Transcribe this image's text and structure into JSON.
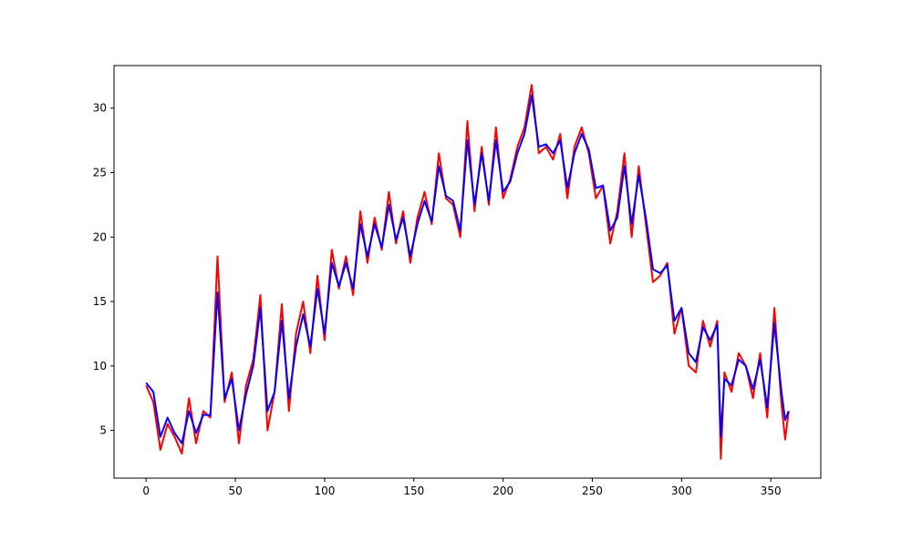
{
  "chart_data": {
    "type": "line",
    "title": "",
    "xlabel": "",
    "ylabel": "",
    "xlim": [
      -18,
      378
    ],
    "ylim": [
      1.3,
      33.3
    ],
    "xticks": [
      0,
      50,
      100,
      150,
      200,
      250,
      300,
      350
    ],
    "yticks": [
      5,
      10,
      15,
      20,
      25,
      30
    ],
    "grid": false,
    "x": [
      0,
      4,
      8,
      12,
      16,
      20,
      24,
      28,
      32,
      36,
      40,
      44,
      48,
      52,
      56,
      60,
      64,
      68,
      72,
      76,
      80,
      84,
      88,
      92,
      96,
      100,
      104,
      108,
      112,
      116,
      120,
      124,
      128,
      132,
      136,
      140,
      144,
      148,
      152,
      156,
      160,
      164,
      168,
      172,
      176,
      180,
      184,
      188,
      192,
      196,
      200,
      204,
      208,
      212,
      216,
      220,
      224,
      228,
      232,
      236,
      240,
      244,
      248,
      252,
      256,
      260,
      264,
      268,
      272,
      276,
      280,
      284,
      288,
      292,
      296,
      300,
      304,
      308,
      312,
      316,
      320,
      322,
      324,
      328,
      332,
      336,
      340,
      344,
      348,
      352,
      356,
      358,
      360
    ],
    "series": [
      {
        "color": "#ff0000",
        "values": [
          8.5,
          7.2,
          3.5,
          5.5,
          4.5,
          3.2,
          7.5,
          4.0,
          6.5,
          6.0,
          18.5,
          7.2,
          9.5,
          4.0,
          8.5,
          10.5,
          15.5,
          5.0,
          8.0,
          14.8,
          6.5,
          12.5,
          15.0,
          11.0,
          17.0,
          12.0,
          19.0,
          16.0,
          18.5,
          15.5,
          22.0,
          18.0,
          21.5,
          19.0,
          23.5,
          19.5,
          22.0,
          18.0,
          21.5,
          23.5,
          21.0,
          26.5,
          23.0,
          22.5,
          20.0,
          29.0,
          22.0,
          27.0,
          22.5,
          28.5,
          23.0,
          24.5,
          27.0,
          28.5,
          31.8,
          26.5,
          27.0,
          26.0,
          28.0,
          23.0,
          27.0,
          28.5,
          26.5,
          23.0,
          24.0,
          19.5,
          22.0,
          26.5,
          20.0,
          25.5,
          21.0,
          16.5,
          17.0,
          18.0,
          12.5,
          14.5,
          10.0,
          9.5,
          13.5,
          11.5,
          13.5,
          2.8,
          9.5,
          8.0,
          11.0,
          10.0,
          7.5,
          11.0,
          6.0,
          14.5,
          7.0,
          4.3,
          6.5
        ]
      },
      {
        "color": "#0000ff",
        "values": [
          8.7,
          8.0,
          4.5,
          6.0,
          4.8,
          4.0,
          6.5,
          4.8,
          6.2,
          6.2,
          15.7,
          7.5,
          9.0,
          5.0,
          7.8,
          10.0,
          14.5,
          6.5,
          8.0,
          13.5,
          7.5,
          11.5,
          14.0,
          11.5,
          16.0,
          12.5,
          18.0,
          16.2,
          18.0,
          16.0,
          21.0,
          18.5,
          21.0,
          19.2,
          22.5,
          19.8,
          21.5,
          18.5,
          21.0,
          22.8,
          21.2,
          25.5,
          23.2,
          22.8,
          20.5,
          27.5,
          22.5,
          26.5,
          22.8,
          27.5,
          23.5,
          24.3,
          26.5,
          28.0,
          31.0,
          27.0,
          27.2,
          26.5,
          27.5,
          23.8,
          26.5,
          28.0,
          26.8,
          23.8,
          24.0,
          20.5,
          21.5,
          25.5,
          21.0,
          24.8,
          21.5,
          17.5,
          17.2,
          17.8,
          13.5,
          14.5,
          11.0,
          10.3,
          13.0,
          12.0,
          13.2,
          4.5,
          9.0,
          8.5,
          10.5,
          10.0,
          8.2,
          10.5,
          6.8,
          13.3,
          8.0,
          5.8,
          6.5
        ]
      }
    ]
  }
}
